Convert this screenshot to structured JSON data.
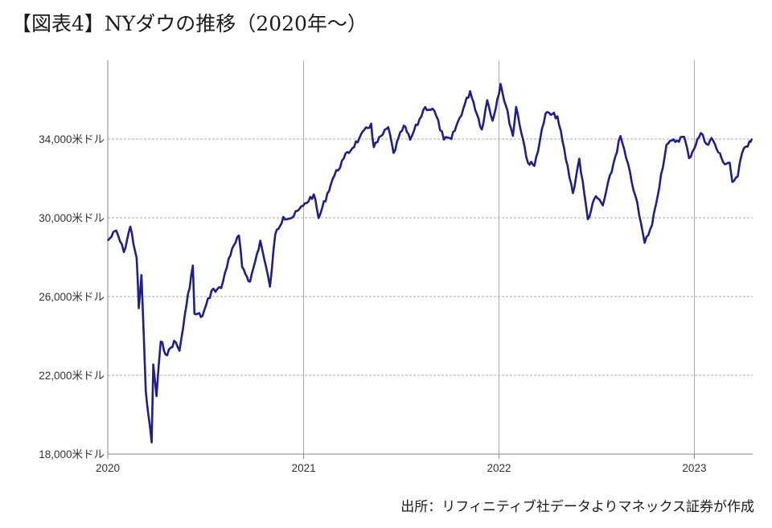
{
  "title": "【図表4】NYダウの推移（2020年～）",
  "source": "出所：リフィニティブ社データよりマネックス証券が作成",
  "colors": {
    "line": "#1f1f8a",
    "grid": "#aaaaaa",
    "axis": "#888888"
  },
  "chart_data": {
    "type": "line",
    "title": "NYダウの推移（2020年～）",
    "ylim": [
      18000,
      38000
    ],
    "y_ticks": [
      "18,000米ドル",
      "22,000米ドル",
      "26,000米ドル",
      "30,000米ドル",
      "34,000米ドル"
    ],
    "y_tick_values": [
      18000,
      22000,
      26000,
      30000,
      34000
    ],
    "x_ticks": [
      "2020",
      "2021",
      "2022",
      "2023"
    ],
    "x_tick_values": [
      "2020-01-01",
      "2021-01-01",
      "2022-01-01",
      "2023-01-01"
    ],
    "xlim": [
      "2020-01-01",
      "2023-04-20"
    ],
    "grid": true,
    "series": [
      {
        "values": [
          [
            "2020-01-02",
            28868
          ],
          [
            "2020-01-17",
            29348
          ],
          [
            "2020-01-31",
            28256
          ],
          [
            "2020-02-12",
            29551
          ],
          [
            "2020-02-24",
            27960
          ],
          [
            "2020-02-28",
            25409
          ],
          [
            "2020-03-04",
            27090
          ],
          [
            "2020-03-12",
            21200
          ],
          [
            "2020-03-16",
            20188
          ],
          [
            "2020-03-23",
            18591
          ],
          [
            "2020-03-26",
            22552
          ],
          [
            "2020-04-01",
            20943
          ],
          [
            "2020-04-09",
            23719
          ],
          [
            "2020-04-21",
            23018
          ],
          [
            "2020-05-04",
            23750
          ],
          [
            "2020-05-14",
            23247
          ],
          [
            "2020-05-27",
            25548
          ],
          [
            "2020-06-08",
            27572
          ],
          [
            "2020-06-11",
            25128
          ],
          [
            "2020-06-26",
            25015
          ],
          [
            "2020-07-13",
            26300
          ],
          [
            "2020-07-31",
            26428
          ],
          [
            "2020-08-14",
            27931
          ],
          [
            "2020-09-02",
            29100
          ],
          [
            "2020-09-08",
            27500
          ],
          [
            "2020-09-23",
            26763
          ],
          [
            "2020-10-12",
            28837
          ],
          [
            "2020-10-30",
            26502
          ],
          [
            "2020-11-09",
            29157
          ],
          [
            "2020-11-24",
            30046
          ],
          [
            "2020-12-10",
            29999
          ],
          [
            "2020-12-31",
            30606
          ],
          [
            "2021-01-20",
            31188
          ],
          [
            "2021-01-29",
            29983
          ],
          [
            "2021-02-24",
            31961
          ],
          [
            "2021-03-17",
            33015
          ],
          [
            "2021-04-15",
            34035
          ],
          [
            "2021-05-07",
            34778
          ],
          [
            "2021-05-12",
            33587
          ],
          [
            "2021-06-08",
            34600
          ],
          [
            "2021-06-18",
            33290
          ],
          [
            "2021-07-07",
            34681
          ],
          [
            "2021-07-19",
            33962
          ],
          [
            "2021-08-16",
            35625
          ],
          [
            "2021-09-02",
            35443
          ],
          [
            "2021-09-20",
            33970
          ],
          [
            "2021-10-04",
            34002
          ],
          [
            "2021-11-08",
            36432
          ],
          [
            "2021-11-30",
            34484
          ],
          [
            "2021-12-10",
            35971
          ],
          [
            "2021-12-20",
            34932
          ],
          [
            "2022-01-04",
            36799
          ],
          [
            "2022-01-27",
            34160
          ],
          [
            "2022-02-02",
            35630
          ],
          [
            "2022-02-24",
            32800
          ],
          [
            "2022-03-08",
            32632
          ],
          [
            "2022-03-29",
            35294
          ],
          [
            "2022-04-20",
            35160
          ],
          [
            "2022-05-19",
            31253
          ],
          [
            "2022-05-31",
            33000
          ],
          [
            "2022-06-16",
            29927
          ],
          [
            "2022-07-01",
            31097
          ],
          [
            "2022-07-14",
            30630
          ],
          [
            "2022-08-16",
            34152
          ],
          [
            "2022-09-13",
            31105
          ],
          [
            "2022-09-30",
            28726
          ],
          [
            "2022-10-14",
            29635
          ],
          [
            "2022-11-10",
            33716
          ],
          [
            "2022-12-13",
            34109
          ],
          [
            "2022-12-22",
            33027
          ],
          [
            "2023-01-13",
            34302
          ],
          [
            "2023-01-24",
            33734
          ],
          [
            "2023-02-02",
            34053
          ],
          [
            "2023-02-24",
            32817
          ],
          [
            "2023-03-08",
            32798
          ],
          [
            "2023-03-13",
            31819
          ],
          [
            "2023-03-23",
            32105
          ],
          [
            "2023-03-31",
            33274
          ],
          [
            "2023-04-14",
            33886
          ],
          [
            "2023-04-18",
            33977
          ]
        ]
      }
    ]
  }
}
